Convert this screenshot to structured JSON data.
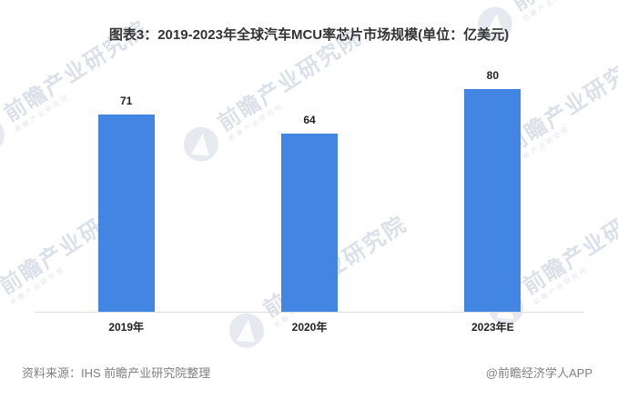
{
  "chart": {
    "title": "图表3：2019-2023年全球汽车MCU率芯片市场规模(单位：亿美元)"
  },
  "chart_data": {
    "type": "bar",
    "categories": [
      "2019年",
      "2020年",
      "2023年E"
    ],
    "values": [
      71,
      64,
      80
    ],
    "title": "图表3：2019-2023年全球汽车MCU率芯片市场规模(单位：亿美元)",
    "xlabel": "",
    "ylabel": "",
    "unit": "亿美元",
    "ylim": [
      0,
      95
    ],
    "grid": false,
    "legend": false,
    "data_labels": true,
    "bar_color": "#4285E2"
  },
  "footer": {
    "source": "资料来源：IHS 前瞻产业研究院整理",
    "credit": "@前瞻经济学人APP"
  },
  "watermark": {
    "text": "前瞻产业研究院",
    "logo": "qianzhan-logo-icon"
  },
  "colors": {
    "bar": "#4285E2",
    "title_text": "#333333",
    "axis_line": "#DDDDDD",
    "footer_text": "#808080",
    "watermark": "#BAC4D4"
  }
}
